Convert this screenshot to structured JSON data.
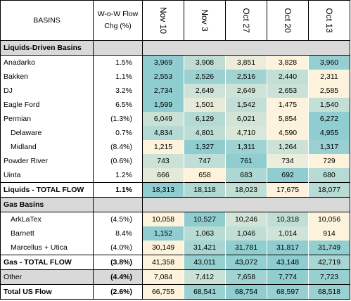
{
  "header": {
    "basins": "BASINS",
    "flow_line1": "W-o-W Flow",
    "flow_line2": "Chg (%)",
    "dates": [
      "Nov 10",
      "Nov 3",
      "Oct 27",
      "Oct 20",
      "Oct 13"
    ]
  },
  "sections": {
    "liquids": "Liquids-Driven Basins",
    "gas": "Gas Basins"
  },
  "rows": [
    {
      "name": "Anadarko",
      "chg": "1.5%",
      "values": [
        "3,969",
        "3,908",
        "3,851",
        "3,828",
        "3,960"
      ]
    },
    {
      "name": "Bakken",
      "chg": "1.1%",
      "values": [
        "2,553",
        "2,526",
        "2,516",
        "2,440",
        "2,311"
      ]
    },
    {
      "name": "DJ",
      "chg": "3.2%",
      "values": [
        "2,734",
        "2,649",
        "2,649",
        "2,653",
        "2,585"
      ]
    },
    {
      "name": "Eagle Ford",
      "chg": "6.5%",
      "values": [
        "1,599",
        "1,501",
        "1,542",
        "1,475",
        "1,540"
      ]
    },
    {
      "name": "Permian",
      "chg": "(1.3%)",
      "values": [
        "6,049",
        "6,129",
        "6,021",
        "5,854",
        "6,272"
      ]
    },
    {
      "name": "Delaware",
      "chg": "0.7%",
      "values": [
        "4,834",
        "4,801",
        "4,710",
        "4,590",
        "4,955"
      ]
    },
    {
      "name": "Midland",
      "chg": "(8.4%)",
      "values": [
        "1,215",
        "1,327",
        "1,311",
        "1,264",
        "1,317"
      ]
    },
    {
      "name": "Powder River",
      "chg": "(0.6%)",
      "values": [
        "743",
        "747",
        "761",
        "734",
        "729"
      ]
    },
    {
      "name": "Uinta",
      "chg": "1.2%",
      "values": [
        "666",
        "658",
        "683",
        "692",
        "680"
      ]
    },
    {
      "name": "Liquids - TOTAL FLOW",
      "chg": "1.1%",
      "values": [
        "18,313",
        "18,118",
        "18,023",
        "17,675",
        "18,077"
      ]
    },
    {
      "name": "ArkLaTex",
      "chg": "(4.5%)",
      "values": [
        "10,058",
        "10,527",
        "10,246",
        "10,318",
        "10,056"
      ]
    },
    {
      "name": "Barnett",
      "chg": "8.4%",
      "values": [
        "1,152",
        "1,063",
        "1,046",
        "1,014",
        "914"
      ]
    },
    {
      "name": "Marcellus + Utica",
      "chg": "(4.0%)",
      "values": [
        "30,149",
        "31,421",
        "31,781",
        "31,817",
        "31,749"
      ]
    },
    {
      "name": "Gas - TOTAL FLOW",
      "chg": "(3.8%)",
      "values": [
        "41,358",
        "43,011",
        "43,072",
        "43,148",
        "42,719"
      ]
    },
    {
      "name": "Other",
      "chg": "(4.4%)",
      "values": [
        "7,084",
        "7,412",
        "7,658",
        "7,774",
        "7,723"
      ]
    },
    {
      "name": "Total US Flow",
      "chg": "(2.6%)",
      "values": [
        "66,755",
        "68,541",
        "68,754",
        "68,597",
        "68,518"
      ]
    }
  ],
  "colors": {
    "high": "#8fcdd0",
    "low": "#fdf3dc",
    "section_bg": "#d9d9d9"
  }
}
